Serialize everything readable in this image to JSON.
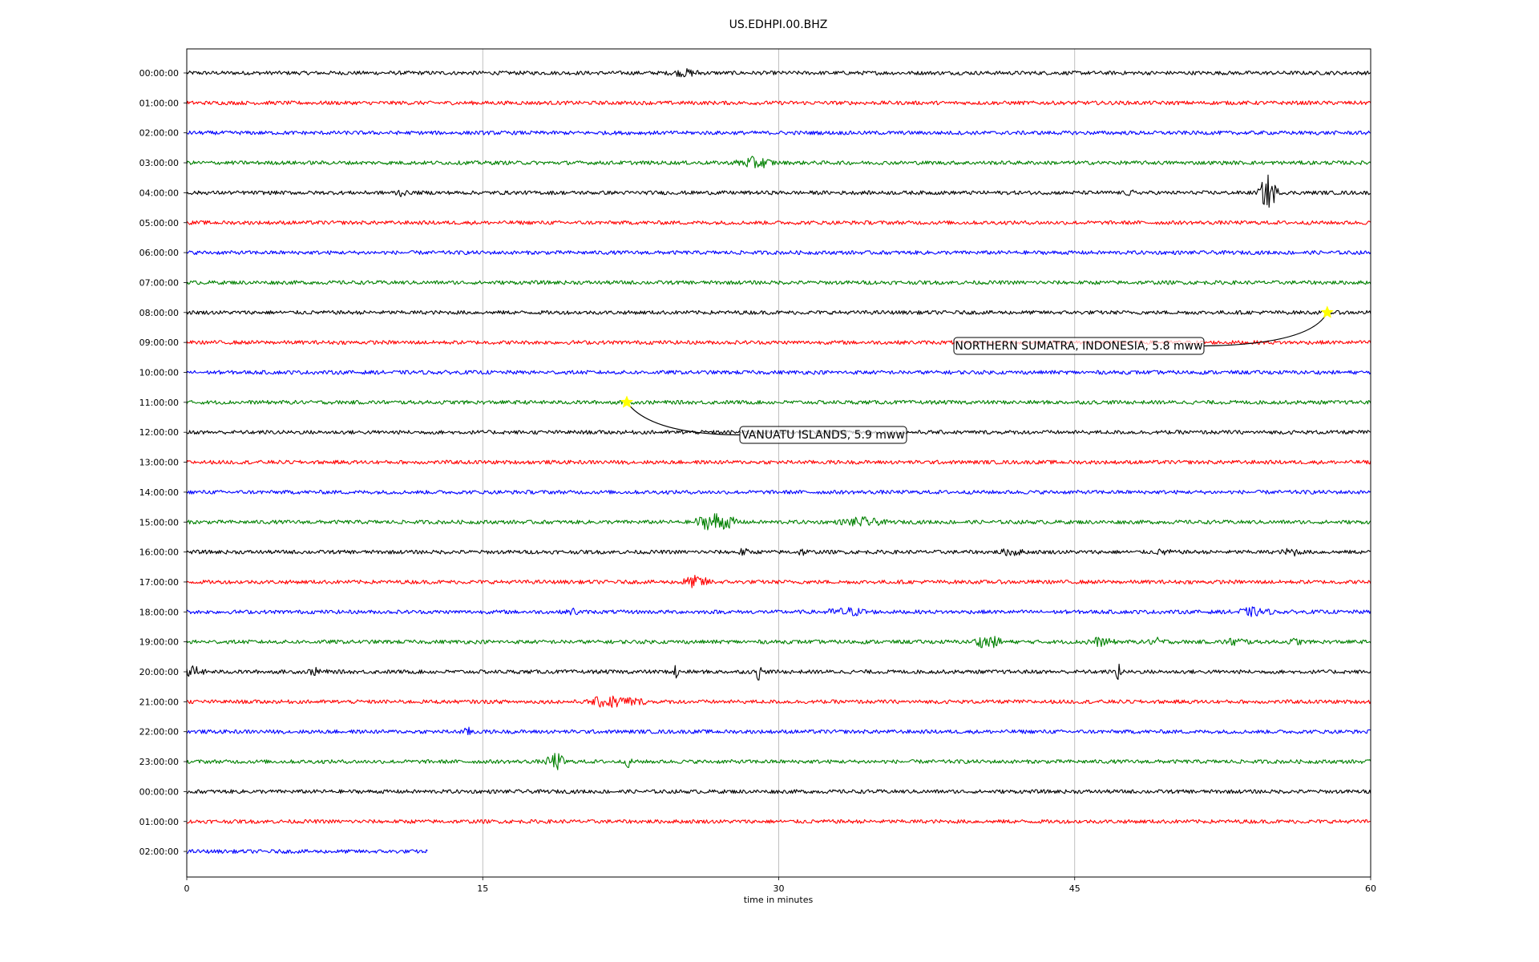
{
  "chart_data": {
    "type": "line",
    "title": "US.EDHPI.00.BHZ",
    "xlabel": "time in minutes",
    "xlim": [
      0,
      60
    ],
    "x_ticks": [
      0,
      15,
      30,
      45,
      60
    ],
    "x_tick_labels": [
      "0",
      "15",
      "30",
      "45",
      "60"
    ],
    "grid": "vertical",
    "trace_colors": [
      "#000000",
      "#ff0000",
      "#0000ff",
      "#008000"
    ],
    "rows": [
      {
        "label": "00:00:00",
        "end_minute": 60
      },
      {
        "label": "01:00:00",
        "end_minute": 60
      },
      {
        "label": "02:00:00",
        "end_minute": 60
      },
      {
        "label": "03:00:00",
        "end_minute": 60
      },
      {
        "label": "04:00:00",
        "end_minute": 60
      },
      {
        "label": "05:00:00",
        "end_minute": 60
      },
      {
        "label": "06:00:00",
        "end_minute": 60
      },
      {
        "label": "07:00:00",
        "end_minute": 60
      },
      {
        "label": "08:00:00",
        "end_minute": 60
      },
      {
        "label": "09:00:00",
        "end_minute": 60
      },
      {
        "label": "10:00:00",
        "end_minute": 60
      },
      {
        "label": "11:00:00",
        "end_minute": 60
      },
      {
        "label": "12:00:00",
        "end_minute": 60
      },
      {
        "label": "13:00:00",
        "end_minute": 60
      },
      {
        "label": "14:00:00",
        "end_minute": 60
      },
      {
        "label": "15:00:00",
        "end_minute": 60
      },
      {
        "label": "16:00:00",
        "end_minute": 60
      },
      {
        "label": "17:00:00",
        "end_minute": 60
      },
      {
        "label": "18:00:00",
        "end_minute": 60
      },
      {
        "label": "19:00:00",
        "end_minute": 60
      },
      {
        "label": "20:00:00",
        "end_minute": 60
      },
      {
        "label": "21:00:00",
        "end_minute": 60
      },
      {
        "label": "22:00:00",
        "end_minute": 60
      },
      {
        "label": "23:00:00",
        "end_minute": 60
      },
      {
        "label": "00:00:00",
        "end_minute": 60
      },
      {
        "label": "01:00:00",
        "end_minute": 60
      },
      {
        "label": "02:00:00",
        "end_minute": 12.2
      }
    ],
    "bursts": [
      {
        "row": 0,
        "minute": 25.3,
        "amp": 0.3,
        "width": 1.0
      },
      {
        "row": 3,
        "minute": 28.8,
        "amp": 0.55,
        "width": 1.2
      },
      {
        "row": 4,
        "minute": 10.8,
        "amp": 0.3,
        "width": 0.4
      },
      {
        "row": 4,
        "minute": 47.8,
        "amp": 0.2,
        "width": 0.3
      },
      {
        "row": 4,
        "minute": 54.8,
        "amp": 1.8,
        "width": 0.6
      },
      {
        "row": 15,
        "minute": 26.8,
        "amp": 0.9,
        "width": 1.4
      },
      {
        "row": 15,
        "minute": 34.2,
        "amp": 0.4,
        "width": 1.4
      },
      {
        "row": 16,
        "minute": 28.2,
        "amp": 0.3,
        "width": 0.4
      },
      {
        "row": 16,
        "minute": 31.2,
        "amp": 0.25,
        "width": 0.4
      },
      {
        "row": 16,
        "minute": 41.8,
        "amp": 0.3,
        "width": 0.8
      },
      {
        "row": 16,
        "minute": 49.5,
        "amp": 0.25,
        "width": 0.5
      },
      {
        "row": 16,
        "minute": 56.0,
        "amp": 0.35,
        "width": 0.6
      },
      {
        "row": 17,
        "minute": 25.8,
        "amp": 0.55,
        "width": 1.0
      },
      {
        "row": 18,
        "minute": 19.6,
        "amp": 0.3,
        "width": 0.4
      },
      {
        "row": 18,
        "minute": 33.5,
        "amp": 0.35,
        "width": 1.5
      },
      {
        "row": 18,
        "minute": 54.0,
        "amp": 0.35,
        "width": 1.2
      },
      {
        "row": 19,
        "minute": 40.6,
        "amp": 0.6,
        "width": 1.0
      },
      {
        "row": 19,
        "minute": 46.2,
        "amp": 0.35,
        "width": 1.0
      },
      {
        "row": 19,
        "minute": 49.2,
        "amp": 0.3,
        "width": 0.6
      },
      {
        "row": 19,
        "minute": 53.2,
        "amp": 0.35,
        "width": 0.8
      },
      {
        "row": 19,
        "minute": 56.2,
        "amp": 0.3,
        "width": 0.4
      },
      {
        "row": 20,
        "minute": 0.4,
        "amp": 0.55,
        "width": 0.6
      },
      {
        "row": 20,
        "minute": 6.6,
        "amp": 0.3,
        "width": 0.6
      },
      {
        "row": 20,
        "minute": 24.8,
        "amp": 0.65,
        "width": 0.2
      },
      {
        "row": 20,
        "minute": 29.0,
        "amp": 0.85,
        "width": 0.2
      },
      {
        "row": 20,
        "minute": 47.2,
        "amp": 0.8,
        "width": 0.2
      },
      {
        "row": 21,
        "minute": 21.2,
        "amp": 0.55,
        "width": 1.0
      },
      {
        "row": 21,
        "minute": 22.3,
        "amp": 0.4,
        "width": 1.2
      },
      {
        "row": 22,
        "minute": 14.3,
        "amp": 0.3,
        "width": 0.5
      },
      {
        "row": 23,
        "minute": 18.7,
        "amp": 0.9,
        "width": 0.6
      },
      {
        "row": 23,
        "minute": 22.4,
        "amp": 0.6,
        "width": 0.2
      }
    ],
    "events": [
      {
        "label": "NORTHERN SUMATRA, INDONESIA, 5.8 mww",
        "row": 8,
        "minute": 57.8
      },
      {
        "label": "VANUATU ISLANDS, 5.9 mww",
        "row": 11,
        "minute": 22.3
      }
    ]
  }
}
